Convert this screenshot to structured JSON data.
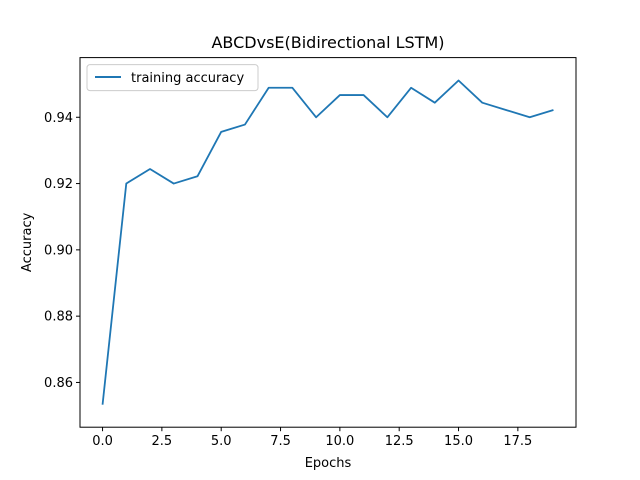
{
  "chart_data": {
    "type": "line",
    "title": "ABCDvsE(Bidirectional LSTM)",
    "xlabel": "Epochs",
    "ylabel": "Accuracy",
    "xlim": [
      -0.95,
      19.95
    ],
    "ylim": [
      0.8465,
      0.958
    ],
    "xticks": [
      0.0,
      2.5,
      5.0,
      7.5,
      10.0,
      12.5,
      15.0,
      17.5
    ],
    "xtick_labels": [
      "0.0",
      "2.5",
      "5.0",
      "7.5",
      "10.0",
      "12.5",
      "15.0",
      "17.5"
    ],
    "yticks": [
      0.86,
      0.88,
      0.9,
      0.92,
      0.94
    ],
    "ytick_labels": [
      "0.86",
      "0.88",
      "0.90",
      "0.92",
      "0.94"
    ],
    "grid": false,
    "legend_position": "upper-left",
    "series": [
      {
        "name": "training accuracy",
        "color": "#1f77b4",
        "x": [
          0,
          1,
          2,
          3,
          4,
          5,
          6,
          7,
          8,
          9,
          10,
          11,
          12,
          13,
          14,
          15,
          16,
          17,
          18,
          19
        ],
        "y": [
          0.8533,
          0.92,
          0.9244,
          0.92,
          0.9222,
          0.9356,
          0.9378,
          0.9489,
          0.9489,
          0.94,
          0.9467,
          0.9467,
          0.94,
          0.9489,
          0.9444,
          0.9511,
          0.9444,
          0.9422,
          0.94,
          0.9422
        ]
      }
    ]
  }
}
